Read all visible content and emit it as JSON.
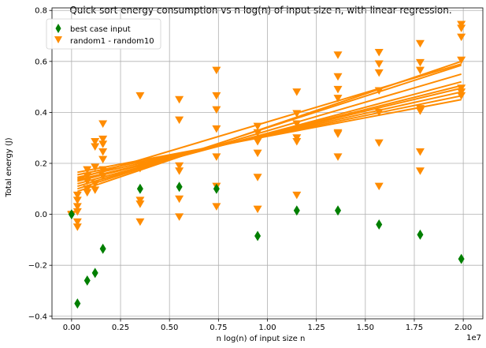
{
  "chart_data": {
    "type": "scatter",
    "title": "Quick sort energy consumption vs n log(n) of input size n, with linear regression.",
    "xlabel": "n log(n) of input size n",
    "ylabel": "Total energy (J)",
    "x_offset_text": "1e7",
    "xlim": [
      -0.1,
      2.1
    ],
    "ylim": [
      -0.41,
      0.81
    ],
    "x_ticks": [
      0.0,
      0.25,
      0.5,
      0.75,
      1.0,
      1.25,
      1.5,
      1.75,
      2.0
    ],
    "x_tick_labels": [
      "0.00",
      "0.25",
      "0.50",
      "0.75",
      "1.00",
      "1.25",
      "1.50",
      "1.75",
      "2.00"
    ],
    "y_ticks": [
      -0.4,
      -0.2,
      0.0,
      0.2,
      0.4,
      0.6,
      0.8
    ],
    "y_tick_labels": [
      "−0.4",
      "−0.2",
      "0.0",
      "0.2",
      "0.4",
      "0.6",
      "0.8"
    ],
    "grid": true,
    "legend_position": "top-left",
    "colors": {
      "best": "#007f00",
      "random": "#ff8c00"
    },
    "series": [
      {
        "name": "best case input",
        "marker": "diamond",
        "x": [
          0.0,
          0.03,
          0.08,
          0.12,
          0.16,
          0.35,
          0.55,
          0.74,
          0.95,
          1.15,
          1.36,
          1.57,
          1.78,
          1.99
        ],
        "y": [
          0.0,
          -0.35,
          -0.26,
          -0.23,
          -0.135,
          0.1,
          0.108,
          0.1,
          -0.085,
          0.015,
          0.015,
          -0.04,
          -0.08,
          -0.175
        ]
      },
      {
        "name": "random1 - random10",
        "marker": "triangle-down",
        "x": [
          0.0,
          0.0,
          0.03,
          0.03,
          0.03,
          0.03,
          0.03,
          0.03,
          0.08,
          0.08,
          0.08,
          0.08,
          0.08,
          0.12,
          0.12,
          0.12,
          0.12,
          0.12,
          0.16,
          0.16,
          0.16,
          0.16,
          0.16,
          0.16,
          0.16,
          0.35,
          0.35,
          0.35,
          0.35,
          0.35,
          0.35,
          0.55,
          0.55,
          0.55,
          0.55,
          0.55,
          0.55,
          0.74,
          0.74,
          0.74,
          0.74,
          0.74,
          0.74,
          0.74,
          0.95,
          0.95,
          0.95,
          0.95,
          0.95,
          0.95,
          1.15,
          1.15,
          1.15,
          1.15,
          1.15,
          1.15,
          1.36,
          1.36,
          1.36,
          1.36,
          1.36,
          1.36,
          1.36,
          1.57,
          1.57,
          1.57,
          1.57,
          1.57,
          1.57,
          1.57,
          1.78,
          1.78,
          1.78,
          1.78,
          1.78,
          1.78,
          1.78,
          1.99,
          1.99,
          1.99,
          1.99,
          1.99,
          1.99,
          1.99
        ],
        "y": [
          0.0,
          -0.003,
          0.075,
          0.055,
          0.03,
          0.01,
          -0.03,
          -0.05,
          0.175,
          0.15,
          0.13,
          0.1,
          0.085,
          0.285,
          0.265,
          0.185,
          0.12,
          0.095,
          0.355,
          0.295,
          0.275,
          0.245,
          0.215,
          0.175,
          0.15,
          0.465,
          0.195,
          0.18,
          0.055,
          0.04,
          -0.03,
          0.45,
          0.37,
          0.19,
          0.17,
          0.06,
          -0.01,
          0.565,
          0.465,
          0.41,
          0.335,
          0.225,
          0.11,
          0.03,
          0.345,
          0.32,
          0.285,
          0.24,
          0.145,
          0.02,
          0.48,
          0.395,
          0.355,
          0.3,
          0.285,
          0.075,
          0.625,
          0.54,
          0.49,
          0.455,
          0.32,
          0.225,
          0.315,
          0.635,
          0.59,
          0.555,
          0.485,
          0.4,
          0.28,
          0.11,
          0.67,
          0.595,
          0.565,
          0.415,
          0.405,
          0.245,
          0.17,
          0.745,
          0.73,
          0.695,
          0.605,
          0.495,
          0.48,
          0.465
        ]
      }
    ],
    "regression_lines": [
      {
        "x": [
          0.03,
          1.99
        ],
        "y": [
          0.09,
          0.6
        ]
      },
      {
        "x": [
          0.03,
          1.99
        ],
        "y": [
          0.1,
          0.585
        ]
      },
      {
        "x": [
          0.03,
          1.99
        ],
        "y": [
          0.11,
          0.55
        ]
      },
      {
        "x": [
          0.03,
          1.99
        ],
        "y": [
          0.12,
          0.52
        ]
      },
      {
        "x": [
          0.03,
          1.99
        ],
        "y": [
          0.13,
          0.505
        ]
      },
      {
        "x": [
          0.03,
          1.99
        ],
        "y": [
          0.135,
          0.495
        ]
      },
      {
        "x": [
          0.03,
          1.99
        ],
        "y": [
          0.145,
          0.48
        ]
      },
      {
        "x": [
          0.03,
          1.99
        ],
        "y": [
          0.155,
          0.465
        ]
      },
      {
        "x": [
          0.03,
          1.99
        ],
        "y": [
          0.165,
          0.45
        ]
      },
      {
        "x": [
          0.03,
          1.99
        ],
        "y": [
          0.14,
          0.59
        ]
      }
    ]
  }
}
